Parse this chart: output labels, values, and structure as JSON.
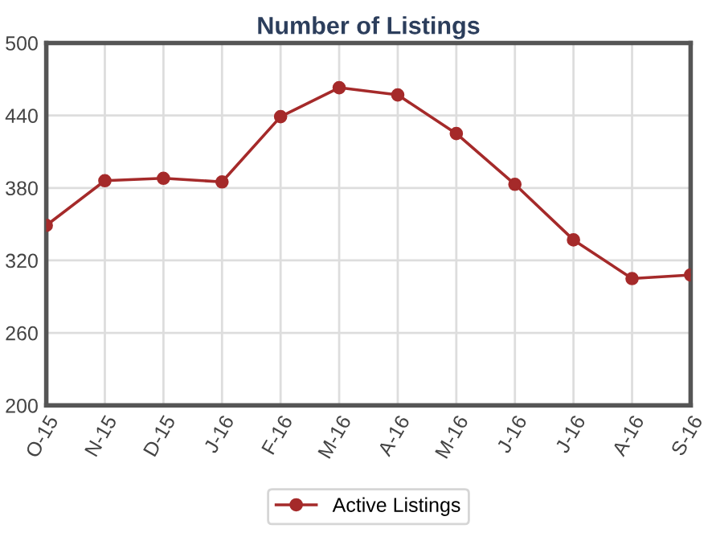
{
  "chart_data": {
    "type": "line",
    "title": "Number of Listings",
    "categories": [
      "O-15",
      "N-15",
      "D-15",
      "J-16",
      "F-16",
      "M-16",
      "A-16",
      "M-16",
      "J-16",
      "J-16",
      "A-16",
      "S-16"
    ],
    "series": [
      {
        "name": "Active Listings",
        "color": "#a52a2a",
        "values": [
          349,
          386,
          388,
          385,
          439,
          463,
          457,
          425,
          383,
          337,
          305,
          308
        ]
      }
    ],
    "ylim": [
      200,
      500
    ],
    "yticks": [
      200,
      260,
      320,
      380,
      440,
      500
    ],
    "grid": true,
    "legend": "bottom",
    "marker": "circle",
    "line_style": "solid"
  }
}
